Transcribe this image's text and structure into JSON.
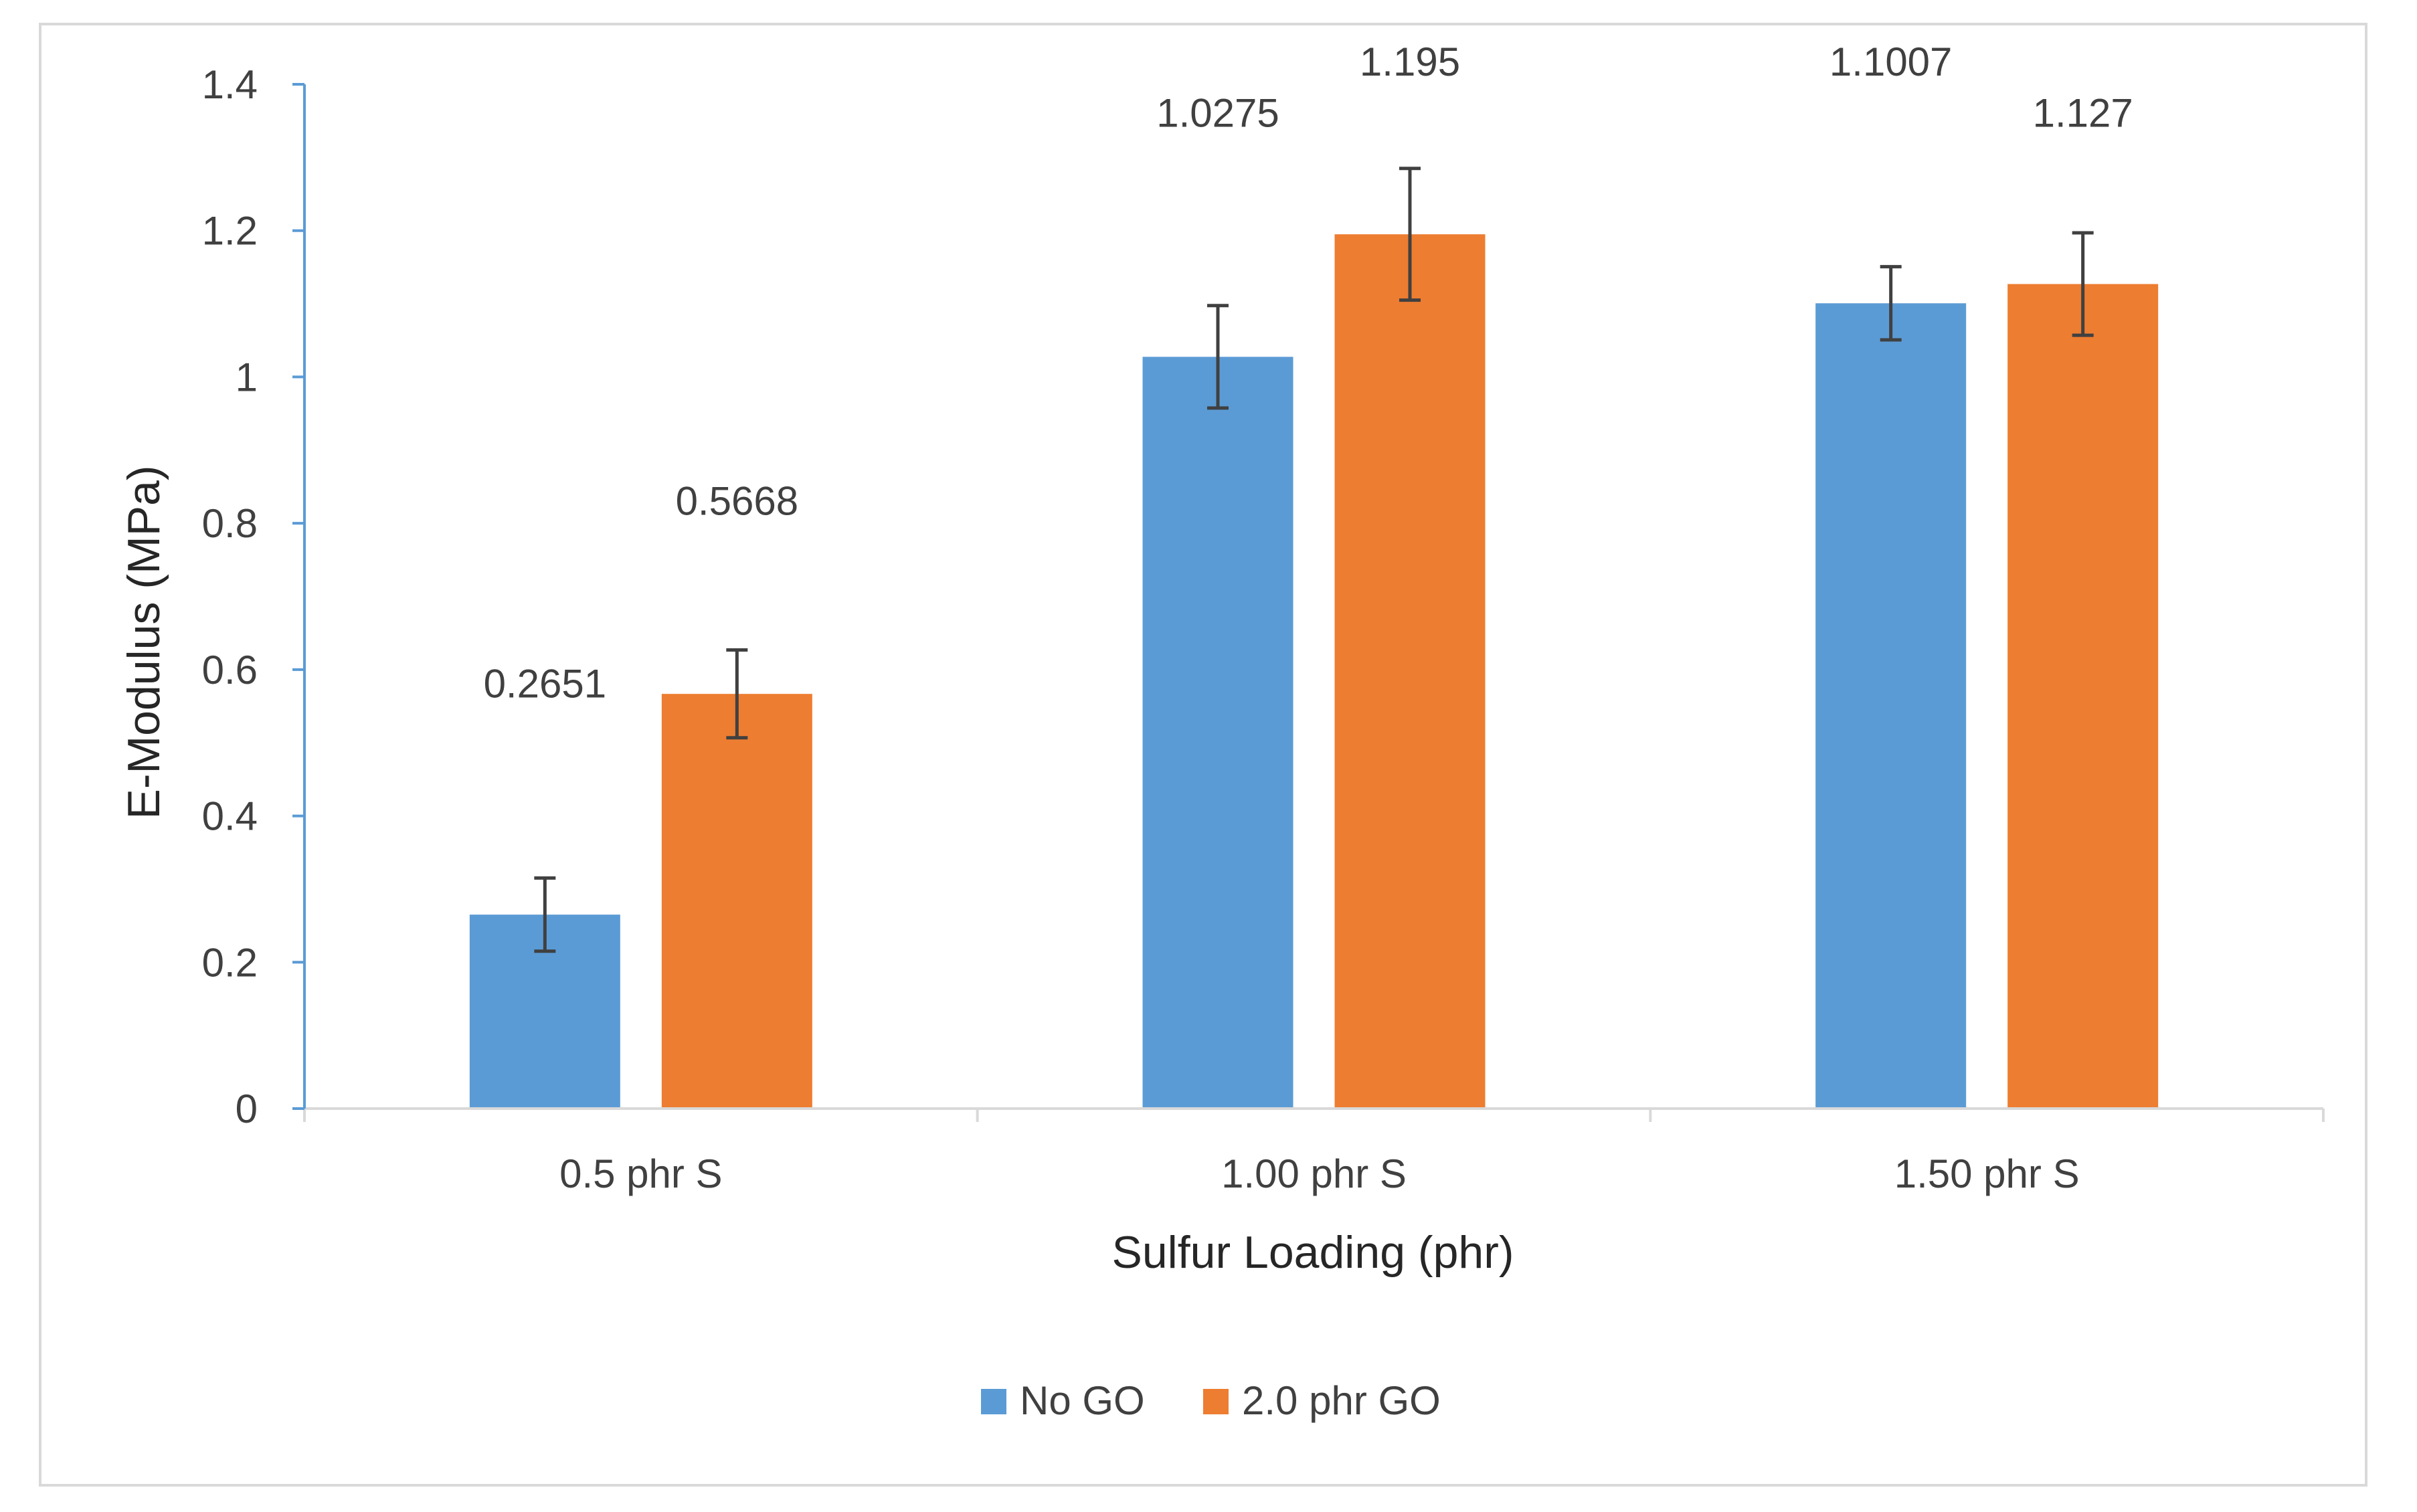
{
  "chart_data": {
    "type": "bar",
    "title": "",
    "xlabel": "Sulfur Loading (phr)",
    "ylabel": "E-Modulus (MPa)",
    "categories": [
      "0.5 phr S",
      "1.00 phr S",
      "1.50 phr S"
    ],
    "ylim": [
      0,
      1.4
    ],
    "yticks": [
      0,
      0.2,
      0.4,
      0.6,
      0.8,
      1,
      1.2,
      1.4
    ],
    "ytick_labels": [
      "0",
      "0.2",
      "0.4",
      "0.6",
      "0.8",
      "1",
      "1.2",
      "1.4"
    ],
    "grid": false,
    "legend_position": "bottom",
    "series": [
      {
        "name": "No GO",
        "color": "#5b9bd5",
        "values": [
          0.2651,
          1.0275,
          1.1007
        ],
        "errors": [
          0.05,
          0.07,
          0.05
        ],
        "data_labels": [
          "0.2651",
          "1.0275",
          "1.1007"
        ],
        "label_values": [
          0.58,
          1.36,
          1.43
        ]
      },
      {
        "name": "2.0 phr GO",
        "color": "#ed7d31",
        "values": [
          0.5668,
          1.195,
          1.127
        ],
        "errors": [
          0.06,
          0.09,
          0.07
        ],
        "data_labels": [
          "0.5668",
          "1.195",
          "1.127"
        ],
        "label_values": [
          0.83,
          1.43,
          1.36
        ]
      }
    ]
  }
}
